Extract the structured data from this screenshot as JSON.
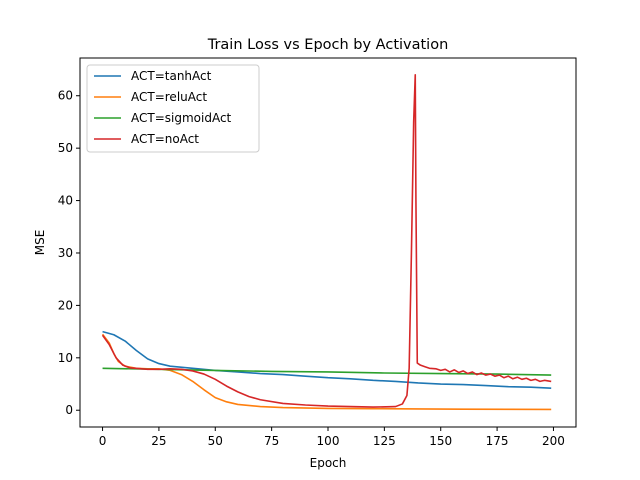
{
  "chart_data": {
    "type": "line",
    "title": "Train Loss vs Epoch by Activation",
    "xlabel": "Epoch",
    "ylabel": "MSE",
    "xlim": [
      -10,
      210
    ],
    "ylim": [
      -3.2,
      67.2
    ],
    "xticks": [
      0,
      25,
      50,
      75,
      100,
      125,
      150,
      175,
      200
    ],
    "yticks": [
      0,
      10,
      20,
      30,
      40,
      50,
      60
    ],
    "grid": false,
    "legend_position": "top-left",
    "series": [
      {
        "name": "ACT=tanhAct",
        "color": "#1f77b4",
        "points": [
          [
            0,
            15.0
          ],
          [
            5,
            14.4
          ],
          [
            10,
            13.2
          ],
          [
            15,
            11.4
          ],
          [
            20,
            9.8
          ],
          [
            25,
            8.9
          ],
          [
            30,
            8.4
          ],
          [
            40,
            8.0
          ],
          [
            50,
            7.6
          ],
          [
            60,
            7.3
          ],
          [
            70,
            7.0
          ],
          [
            80,
            6.8
          ],
          [
            90,
            6.5
          ],
          [
            100,
            6.2
          ],
          [
            110,
            6.0
          ],
          [
            120,
            5.7
          ],
          [
            130,
            5.5
          ],
          [
            140,
            5.2
          ],
          [
            150,
            5.0
          ],
          [
            160,
            4.9
          ],
          [
            170,
            4.7
          ],
          [
            180,
            4.5
          ],
          [
            190,
            4.4
          ],
          [
            199,
            4.2
          ]
        ]
      },
      {
        "name": "ACT=reluAct",
        "color": "#ff7f0e",
        "points": [
          [
            0,
            14.5
          ],
          [
            3,
            12.8
          ],
          [
            5,
            10.8
          ],
          [
            7,
            9.3
          ],
          [
            10,
            8.4
          ],
          [
            15,
            8.0
          ],
          [
            20,
            7.9
          ],
          [
            25,
            7.9
          ],
          [
            30,
            7.6
          ],
          [
            35,
            6.8
          ],
          [
            40,
            5.5
          ],
          [
            45,
            3.9
          ],
          [
            50,
            2.4
          ],
          [
            55,
            1.6
          ],
          [
            60,
            1.1
          ],
          [
            70,
            0.7
          ],
          [
            80,
            0.5
          ],
          [
            100,
            0.35
          ],
          [
            120,
            0.3
          ],
          [
            140,
            0.25
          ],
          [
            160,
            0.2
          ],
          [
            180,
            0.18
          ],
          [
            199,
            0.15
          ]
        ]
      },
      {
        "name": "ACT=sigmoidAct",
        "color": "#2ca02c",
        "points": [
          [
            0,
            8.0
          ],
          [
            25,
            7.8
          ],
          [
            50,
            7.6
          ],
          [
            75,
            7.4
          ],
          [
            100,
            7.3
          ],
          [
            125,
            7.1
          ],
          [
            150,
            7.0
          ],
          [
            175,
            6.9
          ],
          [
            199,
            6.7
          ]
        ]
      },
      {
        "name": "ACT=noAct",
        "color": "#d62728",
        "points": [
          [
            0,
            14.3
          ],
          [
            3,
            12.5
          ],
          [
            6,
            10.0
          ],
          [
            9,
            8.6
          ],
          [
            12,
            8.1
          ],
          [
            20,
            7.8
          ],
          [
            25,
            7.8
          ],
          [
            30,
            7.9
          ],
          [
            35,
            7.8
          ],
          [
            40,
            7.5
          ],
          [
            45,
            6.9
          ],
          [
            50,
            5.9
          ],
          [
            55,
            4.6
          ],
          [
            60,
            3.5
          ],
          [
            65,
            2.6
          ],
          [
            70,
            2.0
          ],
          [
            80,
            1.3
          ],
          [
            90,
            1.0
          ],
          [
            100,
            0.8
          ],
          [
            110,
            0.7
          ],
          [
            120,
            0.6
          ],
          [
            130,
            0.7
          ],
          [
            133,
            1.2
          ],
          [
            135,
            2.8
          ],
          [
            136,
            8.0
          ],
          [
            137,
            30.0
          ],
          [
            138,
            55.0
          ],
          [
            138.7,
            64.0
          ],
          [
            139,
            40.0
          ],
          [
            139.6,
            9.0
          ],
          [
            141,
            8.6
          ],
          [
            143,
            8.3
          ],
          [
            145,
            8.0
          ],
          [
            148,
            7.9
          ],
          [
            150,
            7.6
          ],
          [
            152,
            7.8
          ],
          [
            154,
            7.3
          ],
          [
            156,
            7.7
          ],
          [
            158,
            7.2
          ],
          [
            160,
            7.5
          ],
          [
            162,
            7.0
          ],
          [
            164,
            7.3
          ],
          [
            166,
            6.8
          ],
          [
            168,
            7.1
          ],
          [
            170,
            6.7
          ],
          [
            172,
            6.9
          ],
          [
            174,
            6.5
          ],
          [
            176,
            6.7
          ],
          [
            178,
            6.2
          ],
          [
            180,
            6.5
          ],
          [
            182,
            6.0
          ],
          [
            184,
            6.3
          ],
          [
            186,
            5.9
          ],
          [
            188,
            6.1
          ],
          [
            190,
            5.7
          ],
          [
            192,
            5.9
          ],
          [
            194,
            5.5
          ],
          [
            196,
            5.7
          ],
          [
            199,
            5.5
          ]
        ]
      }
    ]
  }
}
